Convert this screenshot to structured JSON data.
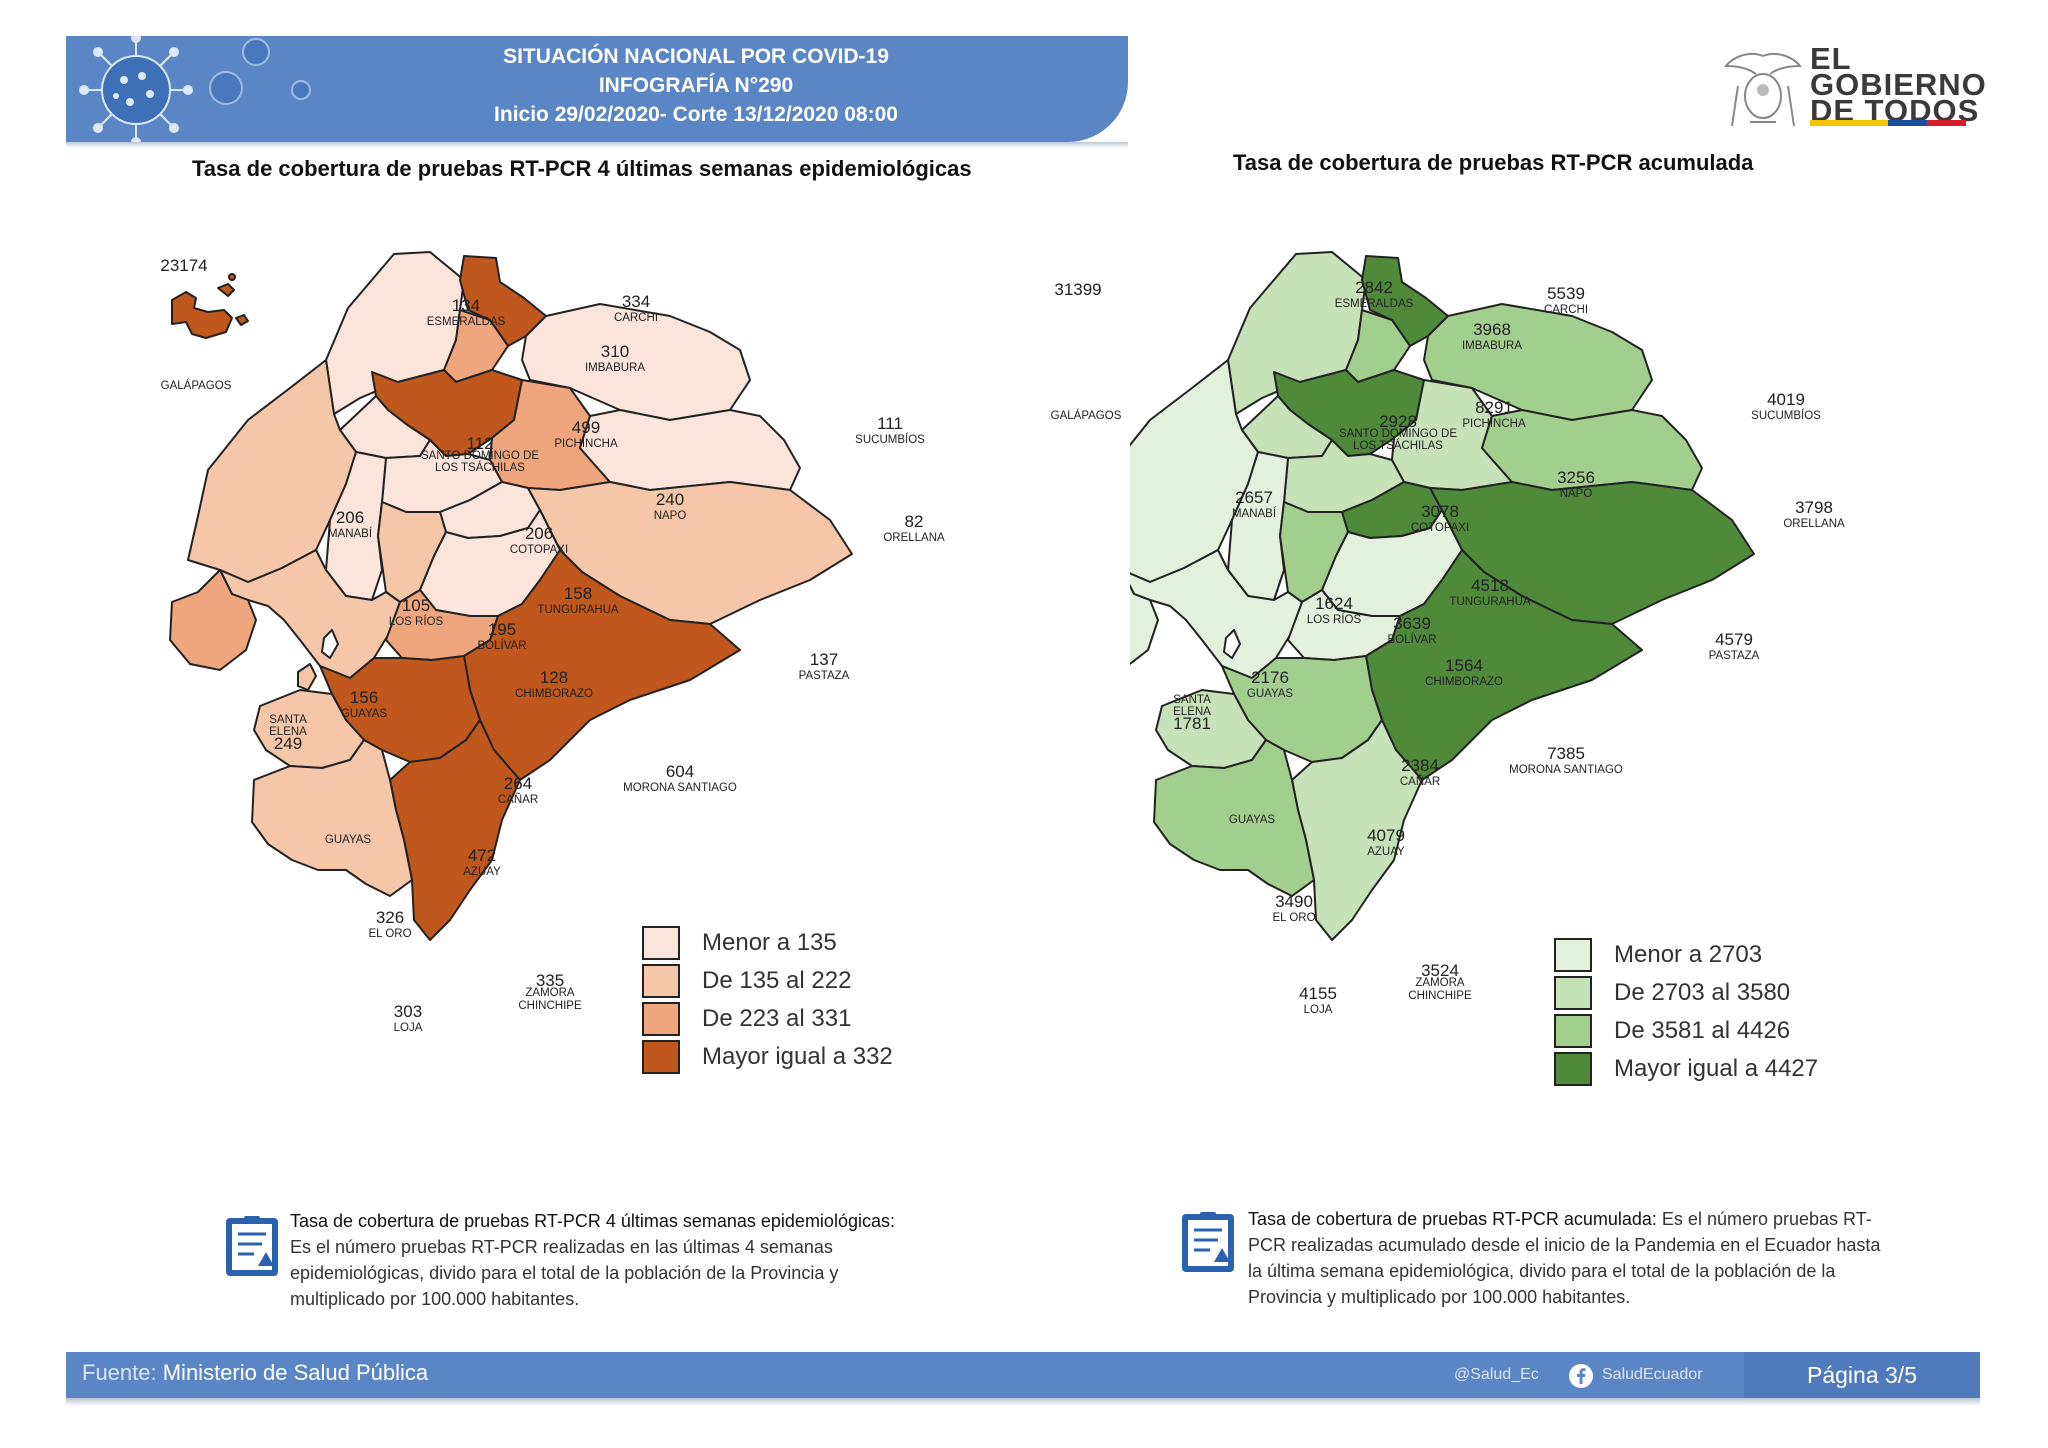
{
  "header": {
    "line1": "SITUACIÓN NACIONAL POR  COVID-19",
    "line2": "INFOGRAFÍA N°290",
    "line3": "Inicio 29/02/2020- Corte 13/12/2020 08:00"
  },
  "logo": {
    "line1": "EL",
    "line2": "GOBIERNO",
    "line3": "DE TODOS"
  },
  "left_map": {
    "title": "Tasa de cobertura de pruebas RT-PCR 4 últimas semanas epidemiológicas",
    "colors": [
      "#fbe5da",
      "#f6c6a8",
      "#efa67d",
      "#c0571c"
    ],
    "legend": [
      "Menor a 135",
      "De 135 al 222",
      "De 223 al 331",
      "Mayor igual a 332"
    ],
    "provinces": [
      {
        "value": "23174",
        "name": ""
      },
      {
        "value": "",
        "name": "GALÁPAGOS"
      },
      {
        "value": "134",
        "name": "ESMERALDAS"
      },
      {
        "value": "334",
        "name": "CARCHI"
      },
      {
        "value": "310",
        "name": "IMBABURA"
      },
      {
        "value": "499",
        "name": "PICHINCHA"
      },
      {
        "value": "112",
        "name": "SANTO DOMINGO DE LOS TSÁCHILAS"
      },
      {
        "value": "111",
        "name": "SUCUMBÍOS"
      },
      {
        "value": "240",
        "name": "NAPO"
      },
      {
        "value": "82",
        "name": "ORELLANA"
      },
      {
        "value": "206",
        "name": "MANABÍ"
      },
      {
        "value": "206",
        "name": "COTOPAXI"
      },
      {
        "value": "158",
        "name": "TUNGURAHUA"
      },
      {
        "value": "105",
        "name": "LOS RÍOS"
      },
      {
        "value": "195",
        "name": "BOLÍVAR"
      },
      {
        "value": "128",
        "name": "CHIMBORAZO"
      },
      {
        "value": "137",
        "name": "PASTAZA"
      },
      {
        "value": "156",
        "name": "GUAYAS"
      },
      {
        "value": "249",
        "name": "SANTA ELENA"
      },
      {
        "value": "264",
        "name": "CAÑAR"
      },
      {
        "value": "604",
        "name": "MORONA SANTIAGO"
      },
      {
        "value": "472",
        "name": "AZUAY"
      },
      {
        "value": "326",
        "name": "EL ORO"
      },
      {
        "value": "335",
        "name": "ZAMORA CHINCHIPE"
      },
      {
        "value": "303",
        "name": "LOJA"
      },
      {
        "value": "",
        "name": "GUAYAS"
      }
    ]
  },
  "right_map": {
    "title": "Tasa de cobertura de pruebas RT-PCR acumulada",
    "colors": [
      "#e3f0dc",
      "#c6e2b8",
      "#a3cf8e",
      "#4f8a3a"
    ],
    "legend": [
      "Menor a 2703",
      "De 2703 al 3580",
      "De 3581 al 4426",
      "Mayor igual a 4427"
    ],
    "provinces": [
      {
        "value": "31399",
        "name": ""
      },
      {
        "value": "",
        "name": "GALÁPAGOS"
      },
      {
        "value": "2842",
        "name": "ESMERALDAS"
      },
      {
        "value": "5539",
        "name": "CARCHI"
      },
      {
        "value": "3968",
        "name": "IMBABURA"
      },
      {
        "value": "8291",
        "name": "PICHINCHA"
      },
      {
        "value": "2928",
        "name": "SANTO DOMINGO DE LOS TSÁCHILAS"
      },
      {
        "value": "4019",
        "name": "SUCUMBÍOS"
      },
      {
        "value": "3256",
        "name": "NAPO"
      },
      {
        "value": "3798",
        "name": "ORELLANA"
      },
      {
        "value": "2657",
        "name": "MANABÍ"
      },
      {
        "value": "3078",
        "name": "COTOPAXI"
      },
      {
        "value": "4518",
        "name": "TUNGURAHUA"
      },
      {
        "value": "1624",
        "name": "LOS RÍOS"
      },
      {
        "value": "3639",
        "name": "BOLÍVAR"
      },
      {
        "value": "1564",
        "name": "CHIMBORAZO"
      },
      {
        "value": "4579",
        "name": "PASTAZA"
      },
      {
        "value": "2176",
        "name": "GUAYAS"
      },
      {
        "value": "1781",
        "name": "SANTA ELENA"
      },
      {
        "value": "2384",
        "name": "CAÑAR"
      },
      {
        "value": "7385",
        "name": "MORONA SANTIAGO"
      },
      {
        "value": "4079",
        "name": "AZUAY"
      },
      {
        "value": "3490",
        "name": "EL ORO"
      },
      {
        "value": "3524",
        "name": "ZAMORA CHINCHIPE"
      },
      {
        "value": "4155",
        "name": "LOJA"
      },
      {
        "value": "",
        "name": "GUAYAS"
      }
    ]
  },
  "notes": {
    "left_title": "Tasa de cobertura de pruebas RT-PCR 4 últimas semanas epidemiológicas:",
    "left_body": "Es el número pruebas RT-PCR realizadas en las últimas 4 semanas epidemiológicas, divido para el total de la población de la Provincia y multiplicado por 100.000 habitantes.",
    "right_title": "Tasa de cobertura de pruebas RT-PCR acumulada:",
    "right_body": "Es el número pruebas RT-PCR realizadas acumulado desde el inicio de la Pandemia en el Ecuador hasta la última semana epidemiológica, divido para el total de la población de la Provincia y multiplicado por 100.000 habitantes."
  },
  "footer": {
    "source_label": "Fuente:",
    "source": "Ministerio de Salud Pública",
    "twitter": "@Salud_Ec",
    "facebook": "SaludEcuador",
    "page": "Página 3/5"
  }
}
